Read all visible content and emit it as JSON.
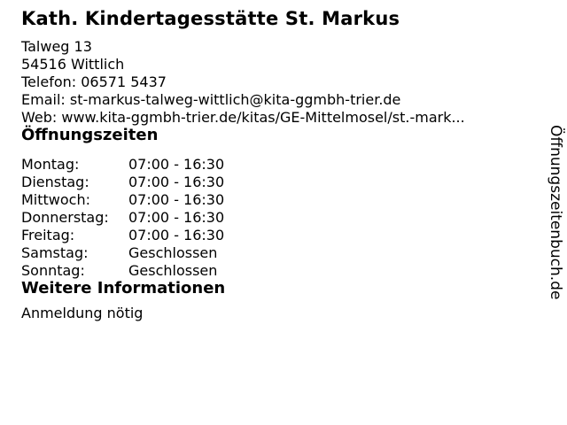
{
  "header": {
    "title": "Kath. Kindertagesstätte St. Markus"
  },
  "contact": {
    "street": "Talweg 13",
    "city": "54516 Wittlich",
    "phone": "Telefon: 06571 5437",
    "email": "Email: st-markus-talweg-wittlich@kita-ggmbh-trier.de",
    "web": "Web: www.kita-ggmbh-trier.de/kitas/GE-Mittelmosel/st.-mark..."
  },
  "opening_hours": {
    "heading": "Öffnungszeiten",
    "rows": [
      {
        "day": "Montag:",
        "time": "07:00 - 16:30"
      },
      {
        "day": "Dienstag:",
        "time": "07:00 - 16:30"
      },
      {
        "day": "Mittwoch:",
        "time": "07:00 - 16:30"
      },
      {
        "day": "Donnerstag:",
        "time": "07:00 - 16:30"
      },
      {
        "day": "Freitag:",
        "time": "07:00 - 16:30"
      },
      {
        "day": "Samstag:",
        "time": "Geschlossen"
      },
      {
        "day": "Sonntag:",
        "time": "Geschlossen"
      }
    ]
  },
  "more_info": {
    "heading": "Weitere Informationen",
    "note": "Anmeldung nötig"
  },
  "watermark": {
    "label": "Öffnungszeitenbuch.de"
  },
  "colors": {
    "text": "#000000",
    "background": "#ffffff"
  }
}
